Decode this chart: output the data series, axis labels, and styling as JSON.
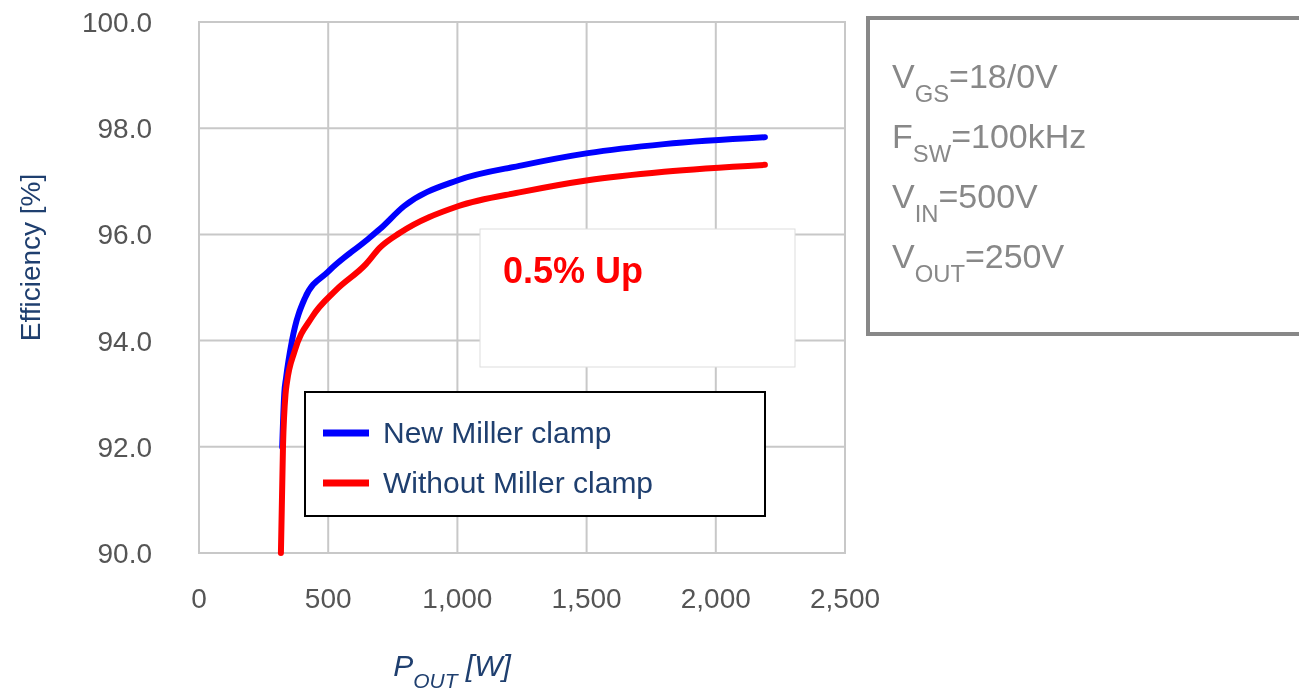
{
  "chart_data": {
    "type": "line",
    "xlabel": "P$_{OUT}$ [W]",
    "ylabel": "Efficiency [%]",
    "xlim": [
      0,
      2500
    ],
    "ylim": [
      90,
      100
    ],
    "xticks": [
      0,
      500,
      {
        "value": 1000,
        "label": "1,000"
      },
      {
        "value": 1500,
        "label": "1,500"
      },
      {
        "value": 2000,
        "label": "2,000"
      },
      {
        "value": 2500,
        "label": "2,500"
      }
    ],
    "yticks": [
      {
        "value": 90,
        "label": "90.0"
      },
      {
        "value": 92,
        "label": "92.0"
      },
      {
        "value": 94,
        "label": "94.0"
      },
      {
        "value": 96,
        "label": "96.0"
      },
      {
        "value": 98,
        "label": "98.0"
      },
      {
        "value": 100,
        "label": "100.0"
      }
    ],
    "grid": true,
    "legend": "bottom",
    "marker": "none",
    "line_style": "solid",
    "annotations": [
      "0.5% Up",
      "V$_{GS}$=18/0V",
      "F$_{SW}$=100kHz",
      "V$_{IN}$=500V",
      "V$_{OUT}$=250V"
    ],
    "series": [
      {
        "name": "New Miller clamp",
        "color": "#0000ff",
        "x": [
          322,
          330,
          337,
          360,
          410,
          500,
          646,
          700,
          793,
          1002,
          1250,
          1505,
          1800,
          2190
        ],
        "values": [
          92,
          93,
          93.3,
          94.0,
          94.8,
          95.3,
          95.88,
          96.1,
          96.53,
          97.02,
          97.3,
          97.53,
          97.7,
          97.83
        ]
      },
      {
        "name": "Without Miller clamp",
        "color": "#ff0000",
        "x": [
          317,
          325,
          335,
          340,
          370,
          437,
          530,
          646,
          700,
          778,
          1002,
          1250,
          1505,
          1800,
          2190
        ],
        "values": [
          90,
          92,
          93,
          93.2,
          93.8,
          94.44,
          94.95,
          95.44,
          95.75,
          96.03,
          96.53,
          96.8,
          97.02,
          97.18,
          97.31
        ]
      }
    ]
  }
}
